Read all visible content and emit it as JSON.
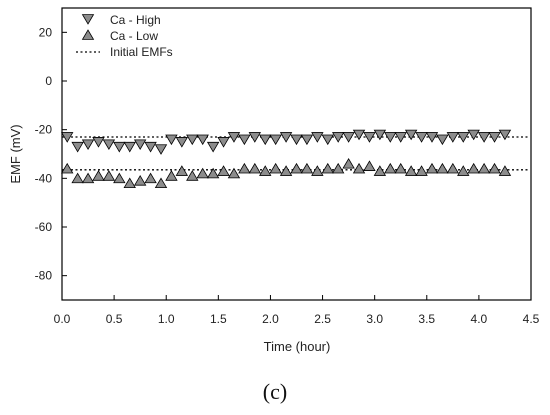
{
  "chart_data": {
    "type": "scatter",
    "title": "",
    "xlabel": "Time (hour)",
    "ylabel": "EMF (mV)",
    "xlim": [
      0,
      4.5
    ],
    "ylim": [
      -90,
      30
    ],
    "xticks": [
      0.0,
      0.5,
      1.0,
      1.5,
      2.0,
      2.5,
      3.0,
      3.5,
      4.0,
      4.5
    ],
    "xtick_labels": [
      "0.0",
      "0.5",
      "1.0",
      "1.5",
      "2.0",
      "2.5",
      "3.0",
      "3.5",
      "4.0",
      "4.5"
    ],
    "yticks": [
      20,
      0,
      -20,
      -40,
      -60,
      -80
    ],
    "ytick_labels": [
      "20",
      "0",
      "-20",
      "-40",
      "-60",
      "-80"
    ],
    "grid": false,
    "legend_position": "top-left",
    "legend": [
      "Ca - High",
      "Ca - Low",
      "Initial EMFs"
    ],
    "reference_lines": [
      {
        "name": "Initial EMFs",
        "y": -23,
        "style": "dotted"
      },
      {
        "name": "Initial EMFs",
        "y": -36.5,
        "style": "dotted"
      }
    ],
    "series": [
      {
        "name": "Ca - High",
        "marker": "triangle-down",
        "color": "#8c8c8c",
        "x": [
          0.05,
          0.15,
          0.25,
          0.35,
          0.45,
          0.55,
          0.65,
          0.75,
          0.85,
          0.95,
          1.05,
          1.15,
          1.25,
          1.35,
          1.45,
          1.55,
          1.65,
          1.75,
          1.85,
          1.95,
          2.05,
          2.15,
          2.25,
          2.35,
          2.45,
          2.55,
          2.65,
          2.75,
          2.85,
          2.95,
          3.05,
          3.15,
          3.25,
          3.35,
          3.45,
          3.55,
          3.65,
          3.75,
          3.85,
          3.95,
          4.05,
          4.15,
          4.25
        ],
        "y": [
          -23,
          -27,
          -26,
          -25,
          -26,
          -27,
          -27,
          -26,
          -27,
          -28,
          -24,
          -25,
          -24,
          -24,
          -27,
          -25,
          -23,
          -24,
          -23,
          -24,
          -24,
          -23,
          -24,
          -24,
          -23,
          -24,
          -23,
          -23,
          -22,
          -23,
          -22,
          -23,
          -23,
          -22,
          -23,
          -23,
          -24,
          -23,
          -23,
          -22,
          -23,
          -23,
          -22
        ]
      },
      {
        "name": "Ca - Low",
        "marker": "triangle-up",
        "color": "#8c8c8c",
        "x": [
          0.05,
          0.15,
          0.25,
          0.35,
          0.45,
          0.55,
          0.65,
          0.75,
          0.85,
          0.95,
          1.05,
          1.15,
          1.25,
          1.35,
          1.45,
          1.55,
          1.65,
          1.75,
          1.85,
          1.95,
          2.05,
          2.15,
          2.25,
          2.35,
          2.45,
          2.55,
          2.65,
          2.75,
          2.85,
          2.95,
          3.05,
          3.15,
          3.25,
          3.35,
          3.45,
          3.55,
          3.65,
          3.75,
          3.85,
          3.95,
          4.05,
          4.15,
          4.25
        ],
        "y": [
          -36,
          -40,
          -40,
          -39,
          -39,
          -40,
          -42,
          -41,
          -40,
          -42,
          -39,
          -37,
          -39,
          -38,
          -38,
          -37,
          -38,
          -36,
          -36,
          -37,
          -36,
          -37,
          -36,
          -36,
          -37,
          -36,
          -36,
          -34,
          -36,
          -35,
          -37,
          -36,
          -36,
          -37,
          -37,
          -36,
          -36,
          -36,
          -37,
          -36,
          -36,
          -36,
          -37
        ]
      }
    ]
  },
  "panel_label": "(c)"
}
